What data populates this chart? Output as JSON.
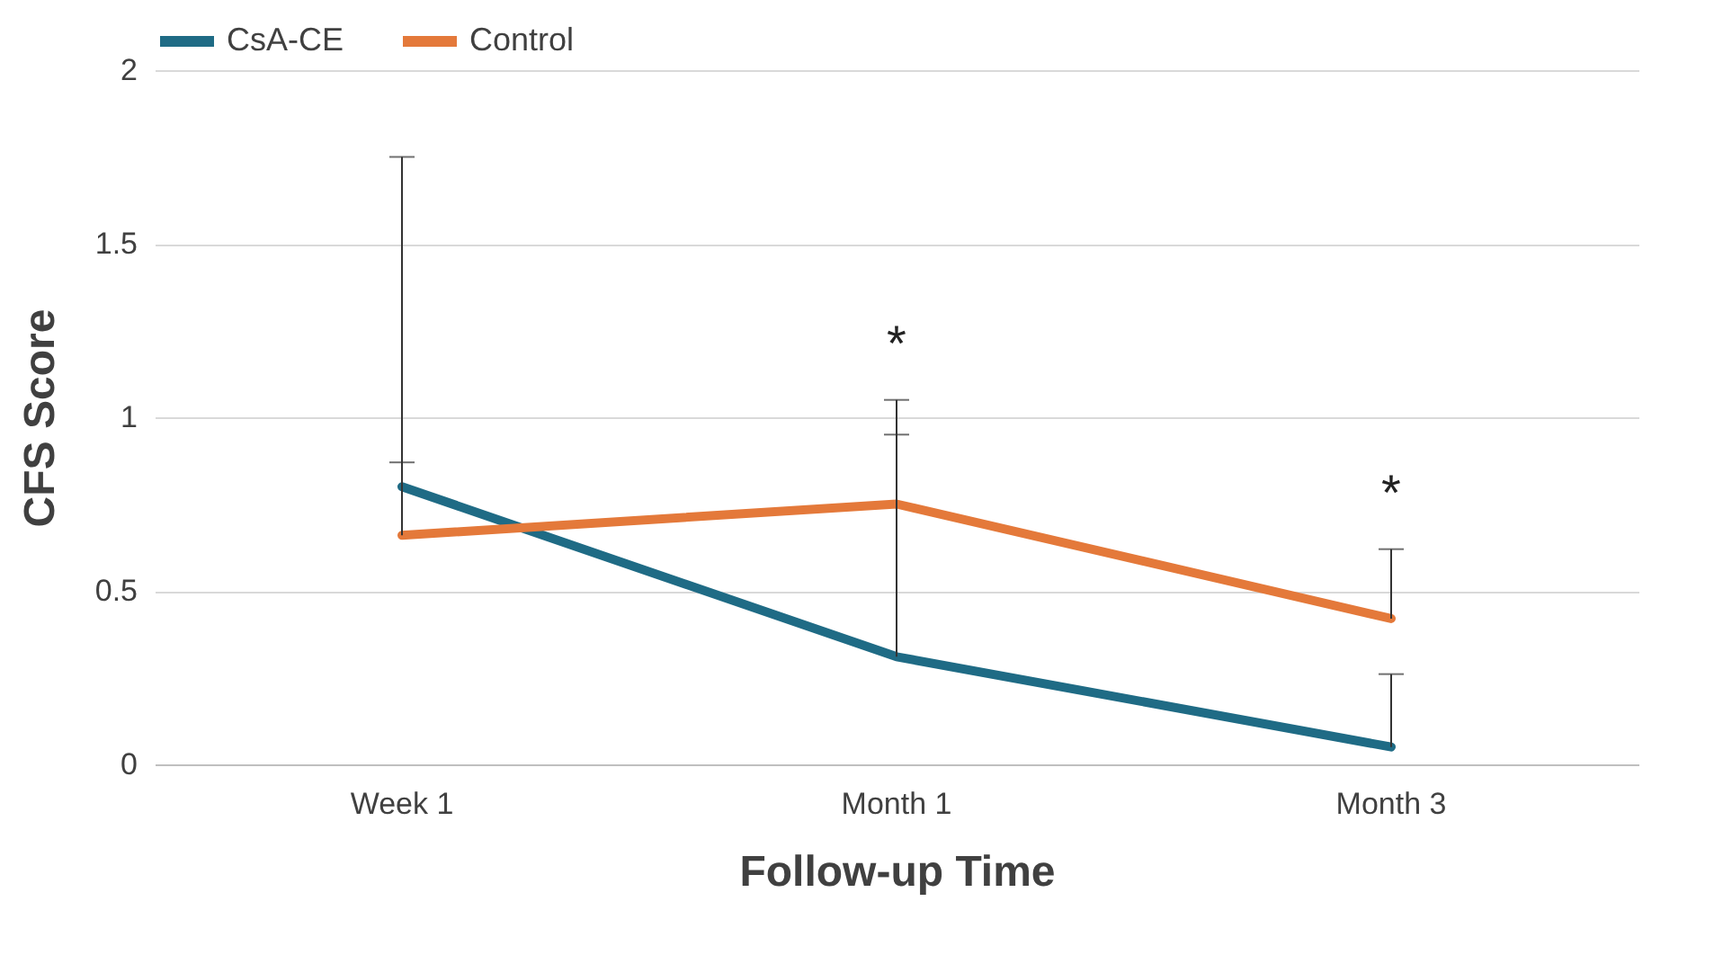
{
  "chart_data": {
    "type": "line",
    "xlabel": "Follow-up Time",
    "ylabel": "CFS Score",
    "categories": [
      "Week 1",
      "Month 1",
      "Month 3"
    ],
    "series": [
      {
        "name": "CsA-CE",
        "color": "#1f6b85",
        "values": [
          0.8,
          0.31,
          0.05
        ],
        "errors": [
          [
            0.8,
            1.75
          ],
          [
            0.31,
            0.95
          ],
          [
            0.05,
            0.26
          ]
        ]
      },
      {
        "name": "Control",
        "color": "#e4793a",
        "values": [
          0.66,
          0.75,
          0.42
        ],
        "errors": [
          [
            0.66,
            0.87
          ],
          [
            0.75,
            1.05
          ],
          [
            0.42,
            0.62
          ]
        ]
      }
    ],
    "ylim": [
      0,
      2
    ],
    "yticks": [
      0,
      0.5,
      1,
      1.5,
      2
    ],
    "grid": "y",
    "legend": "top",
    "marker": "none",
    "line_style": "solid",
    "annotations": [
      "*",
      "*"
    ]
  }
}
